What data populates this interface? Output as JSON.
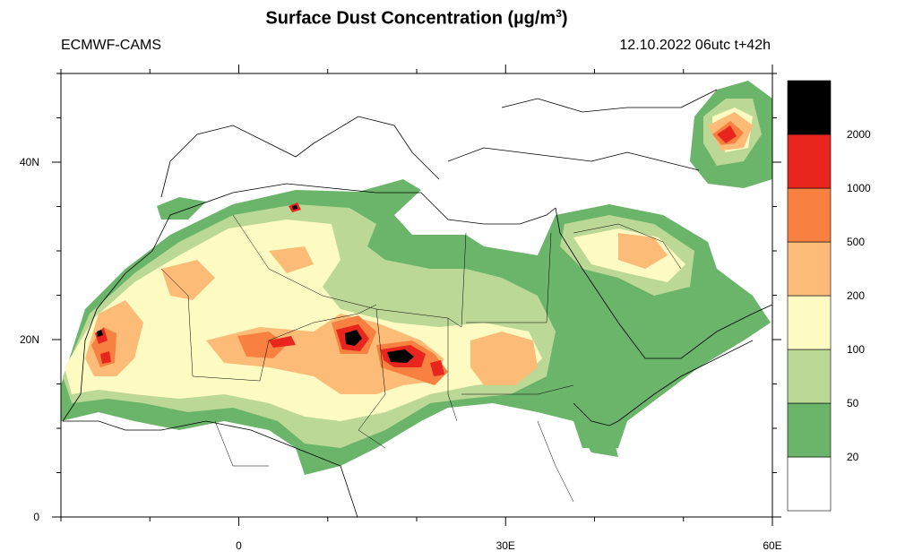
{
  "header": {
    "title": "Surface Dust Concentration",
    "units": "(µg/m",
    "units_sup": "3",
    "units_close": ")",
    "source": "ECMWF-CAMS",
    "forecast": "12.10.2022 06utc t+42h"
  },
  "map": {
    "lon_range": [
      -20,
      60
    ],
    "lat_range": [
      0,
      50
    ],
    "x_ticks": [
      {
        "lon": 0,
        "label": "0"
      },
      {
        "lon": 30,
        "label": "30E"
      },
      {
        "lon": 60,
        "label": "60E"
      }
    ],
    "y_ticks": [
      {
        "lat": 0,
        "label": "0"
      },
      {
        "lat": 20,
        "label": "20N"
      },
      {
        "lat": 40,
        "label": "40N"
      }
    ]
  },
  "legend": {
    "levels": [
      {
        "label": "20",
        "color": "#ffffff"
      },
      {
        "label": "50",
        "color": "#6ab56a"
      },
      {
        "label": "100",
        "color": "#bcd896"
      },
      {
        "label": "200",
        "color": "#fdfbc2"
      },
      {
        "label": "500",
        "color": "#fcbc78"
      },
      {
        "label": "1000",
        "color": "#f88040"
      },
      {
        "label": "2000",
        "color": "#e8261e"
      },
      {
        "label": "",
        "color": "#000000"
      }
    ]
  },
  "colors": {
    "c20": "#6ab56a",
    "c50": "#bcd896",
    "c100": "#fdfbc2",
    "c200": "#fcbc78",
    "c500": "#f88040",
    "c1000": "#e8261e",
    "c2000": "#000000"
  }
}
